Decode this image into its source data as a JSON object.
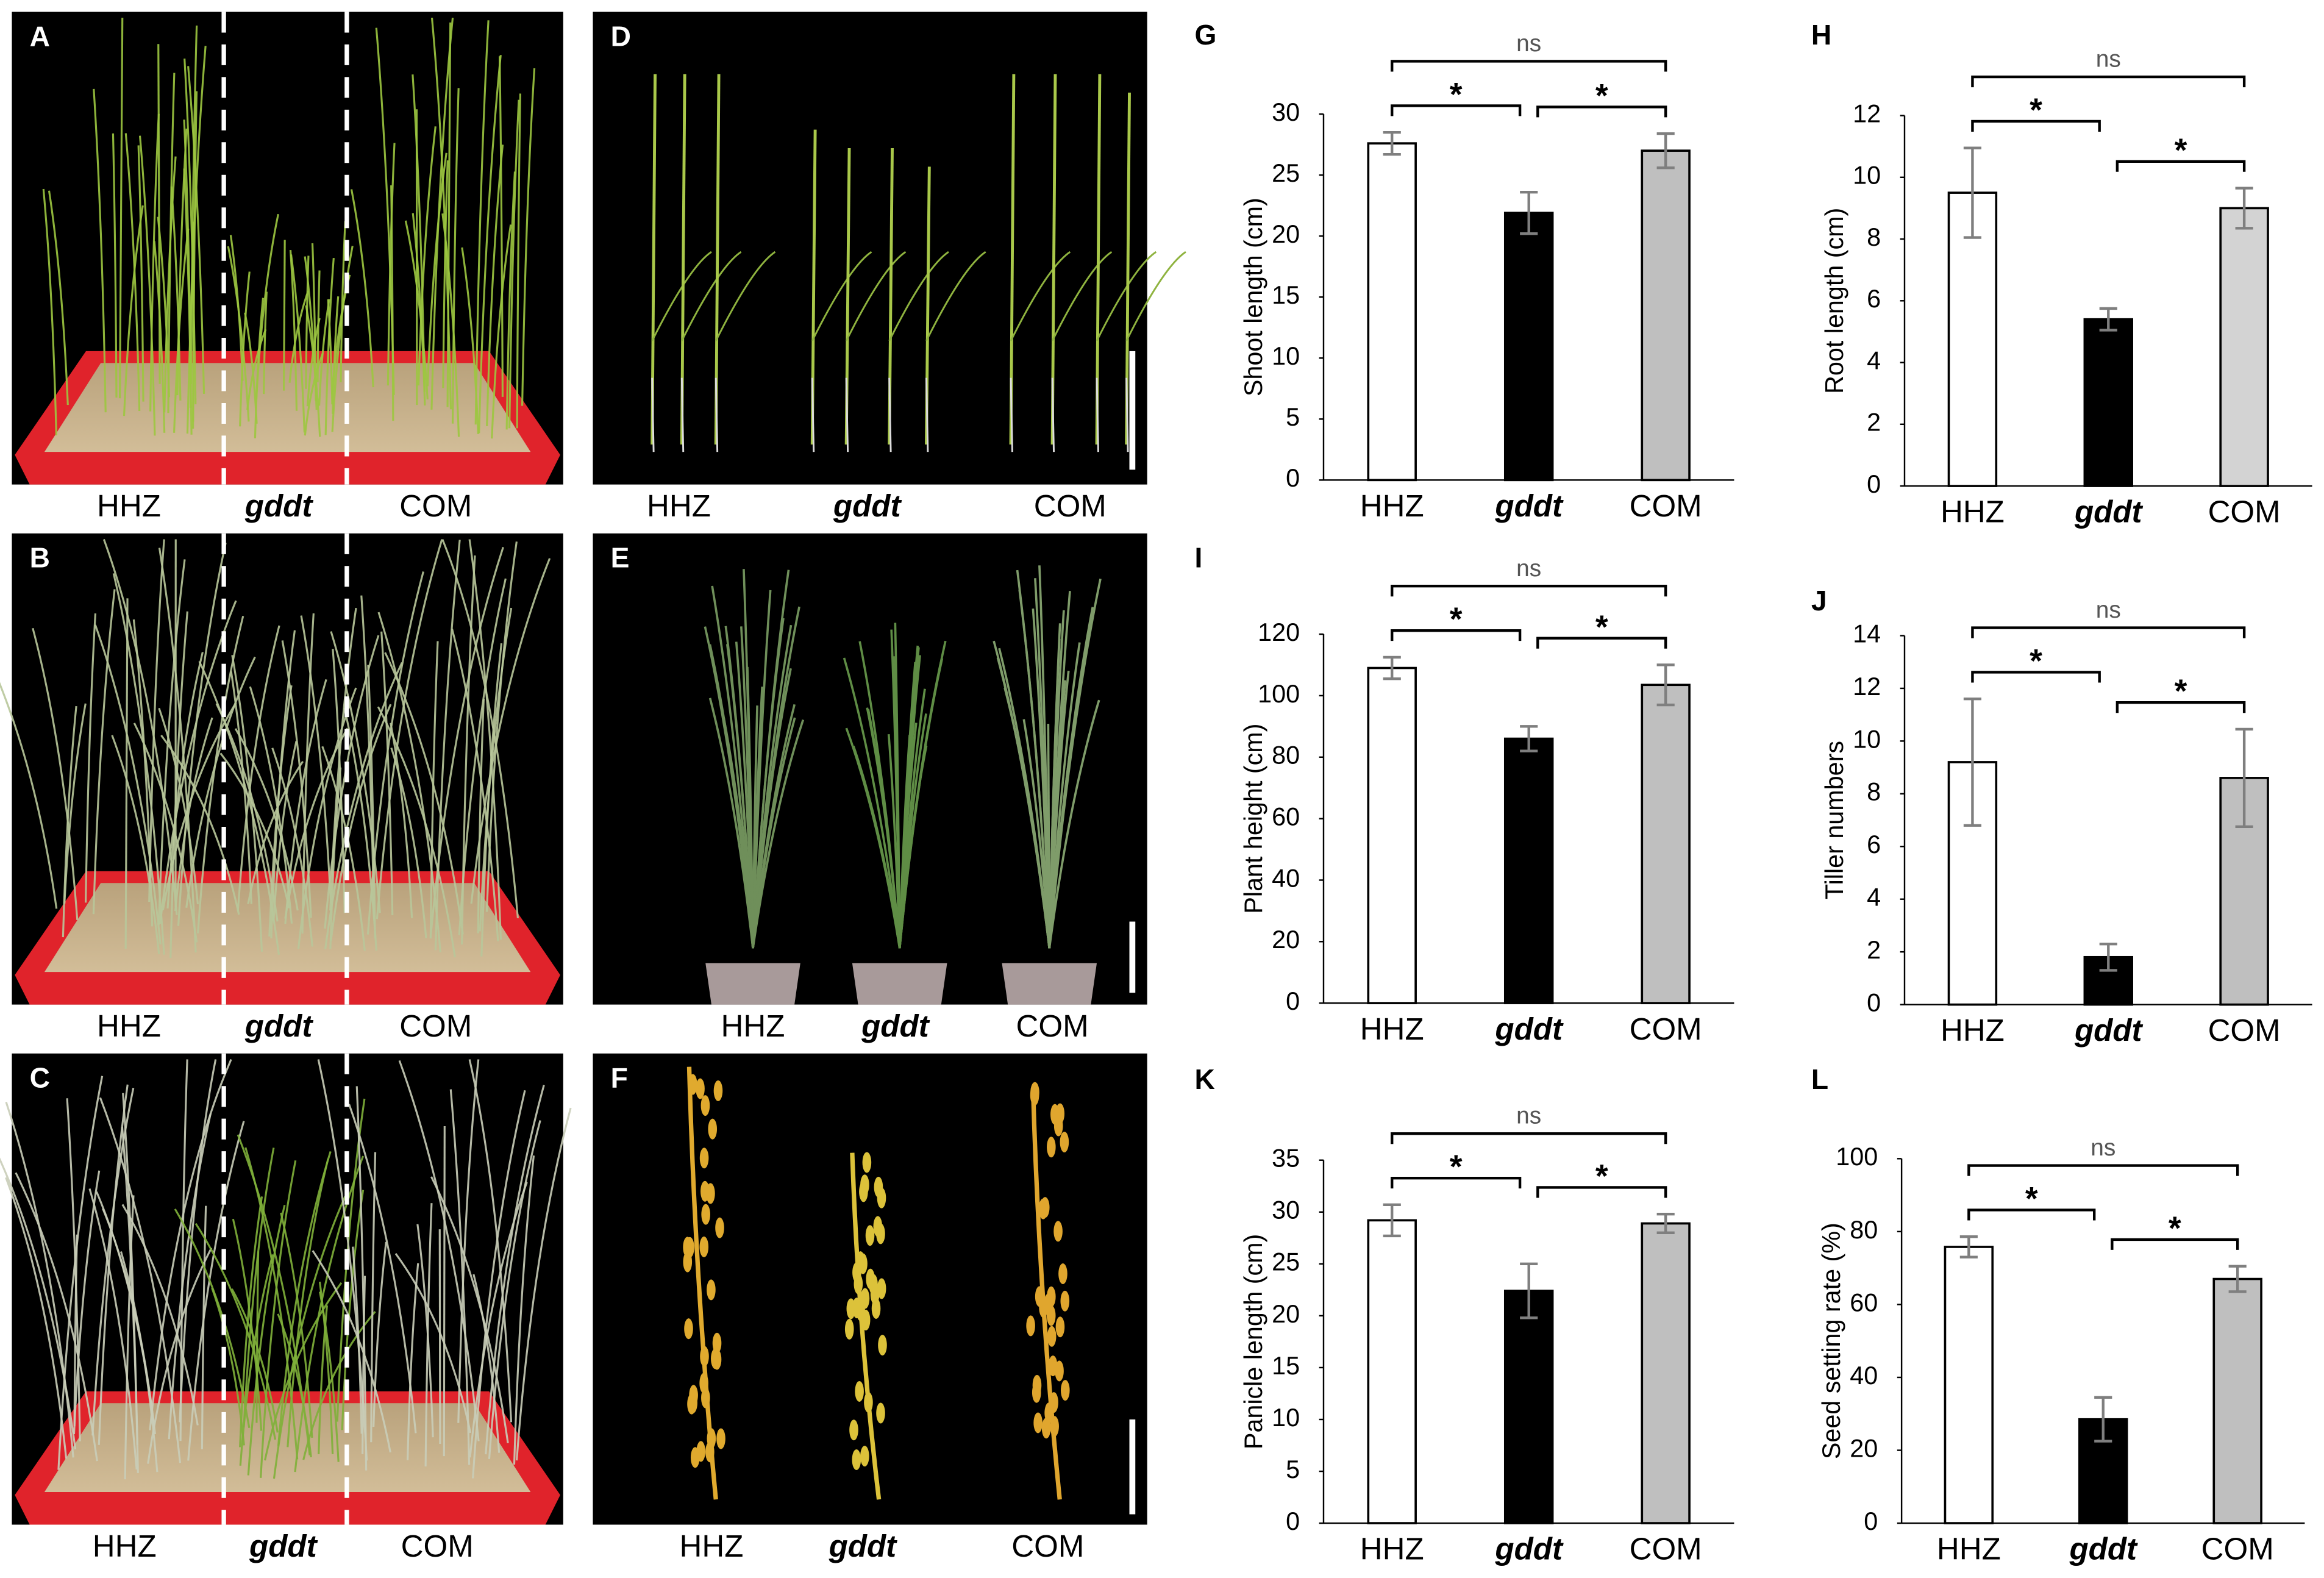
{
  "photo_panels": [
    {
      "letter": "A",
      "labels": [
        "HHZ",
        "gddt",
        "COM"
      ]
    },
    {
      "letter": "B",
      "labels": [
        "HHZ",
        "gddt",
        "COM"
      ]
    },
    {
      "letter": "C",
      "labels": [
        "HHZ",
        "gddt",
        "COM"
      ]
    },
    {
      "letter": "D",
      "labels": [
        "HHZ",
        "gddt",
        "COM"
      ]
    },
    {
      "letter": "E",
      "labels": [
        "HHZ",
        "gddt",
        "COM"
      ]
    },
    {
      "letter": "F",
      "labels": [
        "HHZ",
        "gddt",
        "COM"
      ]
    }
  ],
  "chart_data": [
    {
      "type": "bar",
      "title": "G",
      "ylabel": "Shoot length (cm)",
      "categories": [
        "HHZ",
        "gddt",
        "COM"
      ],
      "values": [
        27.6,
        21.9,
        27.0
      ],
      "errors": [
        0.9,
        1.7,
        1.4
      ],
      "colors": [
        "#ffffff",
        "#000000",
        "#bfbfbf"
      ],
      "ylim": [
        0,
        30
      ],
      "yticks": [
        0,
        5,
        10,
        15,
        20,
        25,
        30
      ],
      "annotations": [
        "*",
        "*",
        "ns"
      ]
    },
    {
      "type": "bar",
      "title": "H",
      "ylabel": "Root length (cm)",
      "categories": [
        "HHZ",
        "gddt",
        "COM"
      ],
      "values": [
        9.5,
        5.4,
        9.0
      ],
      "errors": [
        1.45,
        0.35,
        0.65
      ],
      "colors": [
        "#ffffff",
        "#000000",
        "#d3d3d3"
      ],
      "ylim": [
        0,
        12
      ],
      "yticks": [
        0,
        2,
        4,
        6,
        8,
        10,
        12
      ],
      "annotations": [
        "*",
        "*",
        "ns"
      ]
    },
    {
      "type": "bar",
      "title": "I",
      "ylabel": "Plant height (cm)",
      "categories": [
        "HHZ",
        "gddt",
        "COM"
      ],
      "values": [
        109,
        86,
        103.5
      ],
      "errors": [
        3.5,
        4,
        6.5
      ],
      "colors": [
        "#ffffff",
        "#000000",
        "#bfbfbf"
      ],
      "ylim": [
        0,
        120
      ],
      "yticks": [
        0,
        20,
        40,
        60,
        80,
        100,
        120
      ],
      "annotations": [
        "*",
        "*",
        "ns"
      ]
    },
    {
      "type": "bar",
      "title": "J",
      "ylabel": "Tiller numbers",
      "categories": [
        "HHZ",
        "gddt",
        "COM"
      ],
      "values": [
        9.2,
        1.8,
        8.6
      ],
      "errors": [
        2.4,
        0.5,
        1.85
      ],
      "colors": [
        "#ffffff",
        "#000000",
        "#bfbfbf"
      ],
      "ylim": [
        0,
        14
      ],
      "yticks": [
        0,
        2,
        4,
        6,
        8,
        10,
        12,
        14
      ],
      "annotations": [
        "*",
        "*",
        "ns"
      ]
    },
    {
      "type": "bar",
      "title": "K",
      "ylabel": "Panicle length (cm)",
      "categories": [
        "HHZ",
        "gddt",
        "COM"
      ],
      "values": [
        29.2,
        22.4,
        28.9
      ],
      "errors": [
        1.5,
        2.6,
        0.9
      ],
      "colors": [
        "#ffffff",
        "#000000",
        "#bfbfbf"
      ],
      "ylim": [
        0,
        35
      ],
      "yticks": [
        0,
        5,
        10,
        15,
        20,
        25,
        30,
        35
      ],
      "annotations": [
        "*",
        "*",
        "ns"
      ]
    },
    {
      "type": "bar",
      "title": "L",
      "ylabel": "Seed setting rate (%)",
      "categories": [
        "HHZ",
        "gddt",
        "COM"
      ],
      "values": [
        75.8,
        28.5,
        67
      ],
      "errors": [
        2.8,
        6,
        3.5
      ],
      "colors": [
        "#ffffff",
        "#000000",
        "#bfbfbf"
      ],
      "ylim": [
        0,
        100
      ],
      "yticks": [
        0,
        20,
        40,
        60,
        80,
        100
      ],
      "annotations": [
        "*",
        "*",
        "ns"
      ]
    }
  ]
}
